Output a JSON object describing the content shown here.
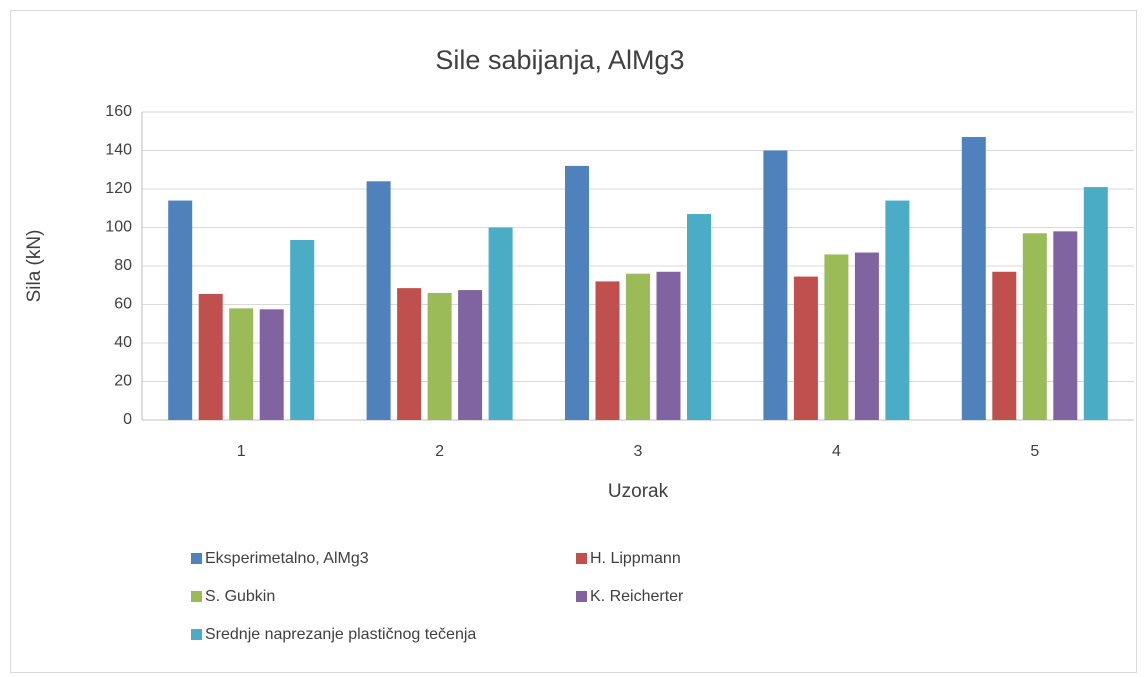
{
  "chart_data": {
    "type": "bar",
    "title": "Sile sabijanja, AlMg3",
    "x_label": "Uzorak",
    "y_label": "Sila (kN)",
    "categories": [
      "1",
      "2",
      "3",
      "4",
      "5"
    ],
    "series": [
      {
        "name": "Eksperimetalno, AlMg3",
        "color": "#4f81bd",
        "values": [
          114,
          124,
          132,
          140,
          147
        ]
      },
      {
        "name": "H. Lippmann",
        "color": "#c0504d",
        "values": [
          65.5,
          68.5,
          72,
          74.5,
          77
        ]
      },
      {
        "name": "S. Gubkin",
        "color": "#9bbb59",
        "values": [
          58,
          66,
          76,
          86,
          97
        ]
      },
      {
        "name": "K. Reicherter",
        "color": "#8064a2",
        "values": [
          57.5,
          67.5,
          77,
          87,
          98
        ]
      },
      {
        "name": "Srednje naprezanje plastičnog tečenja",
        "color": "#4bacc6",
        "values": [
          93.5,
          100,
          107,
          114,
          121
        ]
      }
    ],
    "ylim": [
      0,
      160
    ],
    "yticks": [
      0,
      20,
      40,
      60,
      80,
      100,
      120,
      140,
      160
    ],
    "grid": true
  }
}
